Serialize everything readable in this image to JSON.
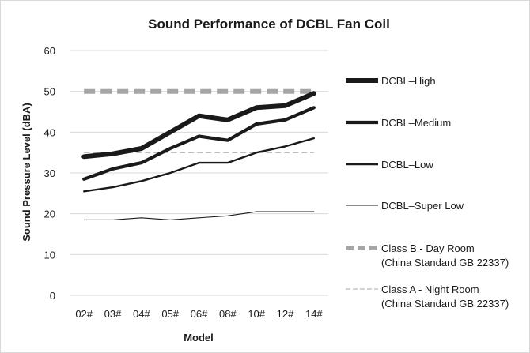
{
  "chart_data": {
    "type": "line",
    "title": "Sound Performance of DCBL Fan Coil",
    "xlabel": "Model",
    "ylabel": "Sound Pressure Level (dBA)",
    "ylim": [
      0,
      60
    ],
    "yticks": [
      0,
      10,
      20,
      30,
      40,
      50,
      60
    ],
    "grid": true,
    "legend_position": "right",
    "categories": [
      "02#",
      "03#",
      "04#",
      "05#",
      "06#",
      "08#",
      "10#",
      "12#",
      "14#"
    ],
    "series": [
      {
        "name": "DCBL–High",
        "values": [
          34,
          34.7,
          36,
          40,
          44,
          43,
          46,
          46.5,
          49.5
        ],
        "color": "#1a1a1a",
        "style": "solid",
        "weight": "heavy"
      },
      {
        "name": "DCBL–Medium",
        "values": [
          28.5,
          31,
          32.5,
          36,
          39,
          38,
          42,
          43,
          46
        ],
        "color": "#1a1a1a",
        "style": "solid",
        "weight": "bold"
      },
      {
        "name": "DCBL–Low",
        "values": [
          25.5,
          26.5,
          28,
          30,
          32.5,
          32.5,
          35,
          36.5,
          38.5
        ],
        "color": "#1a1a1a",
        "style": "solid",
        "weight": "medium"
      },
      {
        "name": "DCBL–Super Low",
        "values": [
          18.5,
          18.5,
          19,
          18.5,
          19,
          19.5,
          20.5,
          20.5,
          20.5
        ],
        "color": "#1a1a1a",
        "style": "solid",
        "weight": "thin"
      },
      {
        "name": "Class B - Day Room (China Standard GB 22337)",
        "name_lines": [
          "Class B - Day Room",
          "(China Standard GB 22337)"
        ],
        "values": [
          50,
          50,
          50,
          50,
          50,
          50,
          50,
          50,
          50
        ],
        "color": "#a6a6a6",
        "style": "dashed",
        "weight": "heavy"
      },
      {
        "name": "Class A - Night Room (China Standard GB 22337)",
        "name_lines": [
          "Class A - Night Room",
          "(China Standard GB 22337)"
        ],
        "values": [
          35,
          35,
          35,
          35,
          35,
          35,
          35,
          35,
          35
        ],
        "color": "#a6a6a6",
        "style": "dashed",
        "weight": "thin"
      }
    ]
  }
}
